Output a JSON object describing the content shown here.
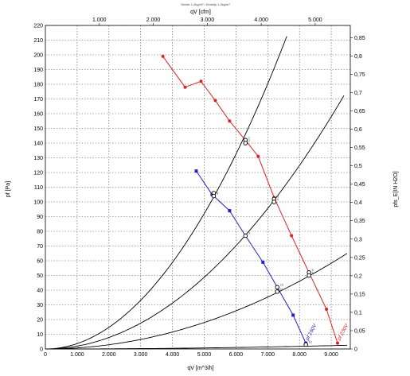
{
  "chart_data": {
    "type": "line",
    "header_note": "Dichte 1,2kg/m³ / Density 1,2kg/m³",
    "xlabel": "qV [m^3/h]",
    "x2label": "qV [cfm]",
    "ylabel": "pf [Pa]",
    "y2label": "pfs_E[IN H2O]",
    "xlim": [
      0,
      9600
    ],
    "ylim": [
      0,
      220
    ],
    "x_ticks": [
      0,
      1000,
      2000,
      3000,
      4000,
      5000,
      6000,
      7000,
      8000,
      9000
    ],
    "x_tick_labels": [
      "0",
      "1.000",
      "2.000",
      "3.000",
      "4.000",
      "5.000",
      "6.000",
      "7.000",
      "8.000",
      "9.000"
    ],
    "y_ticks": [
      0,
      10,
      20,
      30,
      40,
      50,
      60,
      70,
      80,
      90,
      100,
      110,
      120,
      130,
      140,
      150,
      160,
      170,
      180,
      190,
      200,
      210,
      220
    ],
    "x2_ticks": [
      1000,
      2000,
      3000,
      4000,
      5000
    ],
    "x2_tick_labels": [
      "1.000",
      "2.000",
      "3.000",
      "4.000",
      "5.000"
    ],
    "y2_ticks": [
      0,
      0.05,
      0.1,
      0.15,
      0.2,
      0.25,
      0.3,
      0.35,
      0.4,
      0.45,
      0.5,
      0.55,
      0.6,
      0.65,
      0.7,
      0.75,
      0.8,
      0.85
    ],
    "y2_tick_labels": [
      "0",
      "0,05",
      "0,1",
      "0,15",
      "0,2",
      "0,25",
      "0,3",
      "0,35",
      "0,4",
      "0,45",
      "0,5",
      "0,55",
      "0,6",
      "0,65",
      "0,7",
      "0,75",
      "0,8",
      "0,85"
    ],
    "grid": true,
    "series": [
      {
        "name": "pf 230V",
        "color": "#e02020",
        "marker": "circle",
        "x": [
          3700,
          4400,
          4900,
          5350,
          5800,
          6300,
          6700,
          7200,
          7750,
          8300,
          8850,
          9200
        ],
        "y": [
          199,
          178,
          182,
          169,
          155,
          142,
          131,
          103,
          77,
          52,
          27,
          4
        ]
      },
      {
        "name": "pf 160V",
        "color": "#2020d0",
        "marker": "square",
        "x": [
          4750,
          5250,
          5800,
          6300,
          6850,
          7300,
          7800,
          8200
        ],
        "y": [
          121,
          105,
          94,
          77,
          59,
          42,
          23,
          4
        ]
      }
    ],
    "system_curves": [
      {
        "k": 3.68e-06,
        "x_end": 7600
      },
      {
        "k": 1.95e-06,
        "x_end": 9400
      },
      {
        "k": 7.2e-07,
        "x_end": 9500
      },
      {
        "k": 2.8e-08,
        "x_end": 9500
      }
    ],
    "operating_points": [
      {
        "label": "1",
        "x": 6300,
        "y": 142
      },
      {
        "label": "2",
        "x": 6300,
        "y": 140
      },
      {
        "label": "3",
        "x": 7200,
        "y": 102
      },
      {
        "label": "4",
        "x": 7200,
        "y": 100
      },
      {
        "label": "5",
        "x": 8300,
        "y": 52
      },
      {
        "label": "6",
        "x": 8300,
        "y": 50
      },
      {
        "label": "7",
        "x": 5300,
        "y": 106
      },
      {
        "label": "8",
        "x": 5300,
        "y": 104
      },
      {
        "label": "9",
        "x": 6300,
        "y": 77
      },
      {
        "label": "10",
        "x": 7300,
        "y": 42
      },
      {
        "label": "11",
        "x": 7300,
        "y": 39
      },
      {
        "label": "12",
        "x": 8200,
        "y": 3
      }
    ]
  }
}
